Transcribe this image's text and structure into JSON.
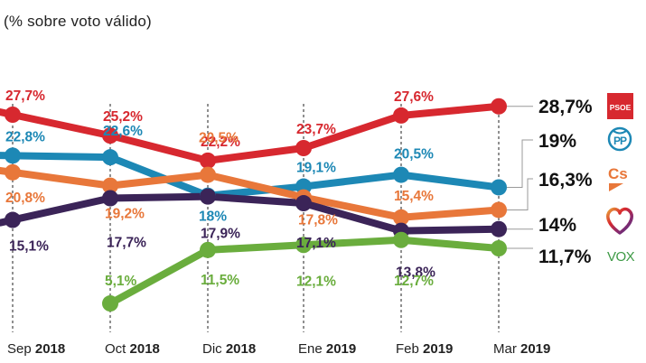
{
  "subtitle": "(% sobre voto válido)",
  "chart_data": {
    "type": "line",
    "title": "",
    "subtitle": "(% sobre voto válido)",
    "xlabel": "",
    "ylabel": "% sobre voto válido",
    "grid": false,
    "legend": "right (party logos next to final values)",
    "x": [
      {
        "month": "Sep",
        "year": "2018"
      },
      {
        "month": "Oct",
        "year": "2018"
      },
      {
        "month": "Dic",
        "year": "2018"
      },
      {
        "month": "Ene",
        "year": "2019"
      },
      {
        "month": "Feb",
        "year": "2019"
      },
      {
        "month": "Mar",
        "year": "2019"
      }
    ],
    "series": [
      {
        "name": "PSOE",
        "color": "#d7282f",
        "values": [
          27.7,
          25.2,
          22.2,
          23.7,
          27.6,
          28.7
        ],
        "labels": [
          "27,7%",
          "25,2%",
          "22,2%",
          "23,7%",
          "27,6%",
          "28,7%"
        ]
      },
      {
        "name": "PP",
        "color": "#1d88b5",
        "values": [
          22.8,
          22.6,
          18.0,
          19.1,
          20.5,
          19.0
        ],
        "labels": [
          "22,8%",
          "22,6%",
          "18%",
          "19,1%",
          "20,5%",
          "19%"
        ]
      },
      {
        "name": "Cs",
        "color": "#e8773a",
        "values": [
          20.8,
          19.2,
          20.5,
          17.8,
          15.4,
          16.3
        ],
        "labels": [
          "20,8%",
          "19,2%",
          "20,5%",
          "17,8%",
          "15,4%",
          "16,3%"
        ]
      },
      {
        "name": "Podemos",
        "color": "#3b2458",
        "values": [
          15.1,
          17.7,
          17.9,
          17.1,
          13.8,
          14.0
        ],
        "labels": [
          "15,1%",
          "17,7%",
          "17,9%",
          "17,1%",
          "13,8%",
          "14%"
        ]
      },
      {
        "name": "Vox",
        "color": "#6aad3d",
        "values": [
          null,
          5.1,
          11.5,
          12.1,
          12.7,
          11.7
        ],
        "labels": [
          null,
          "5,1%",
          "11,5%",
          "12,1%",
          "12,7%",
          "11,7%"
        ]
      }
    ],
    "final_labels": [
      "28,7%",
      "19%",
      "16,3%",
      "14%",
      "11,7%"
    ],
    "logos": [
      {
        "party": "PSOE",
        "icon": "psoe-logo",
        "text": "PSOE",
        "color": "#d7282f"
      },
      {
        "party": "PP",
        "icon": "pp-logo",
        "text": "PP",
        "color": "#1d88b5"
      },
      {
        "party": "Cs",
        "icon": "cs-logo",
        "text": "Cs",
        "color": "#e8773a"
      },
      {
        "party": "Podemos",
        "icon": "heart-logo",
        "text": "",
        "color": "#9b2c6a"
      },
      {
        "party": "Vox",
        "icon": "vox-logo",
        "text": "VOX",
        "color": "#3d9a45"
      }
    ]
  }
}
